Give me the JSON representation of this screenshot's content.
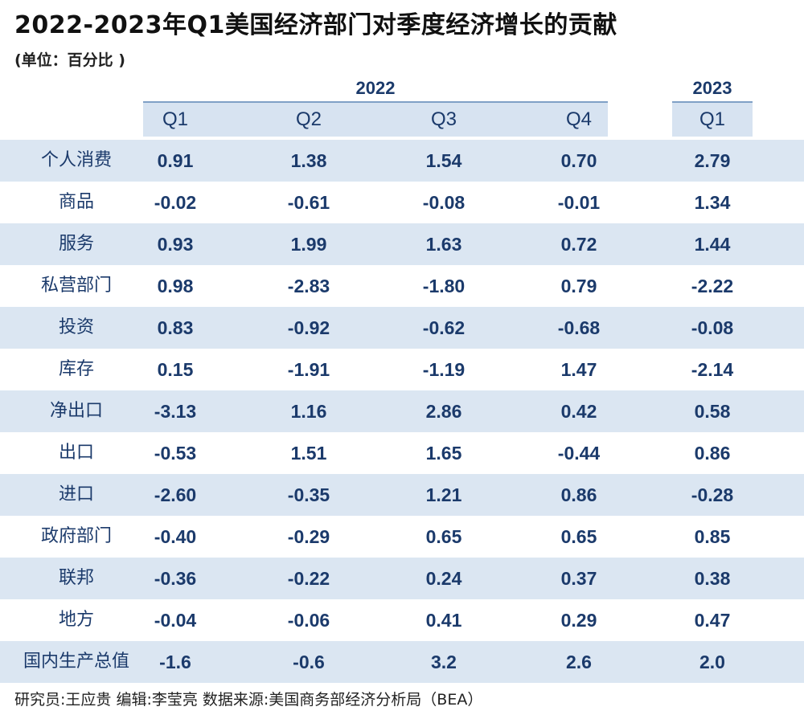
{
  "title": "2022-2023年Q1美国经济部门对季度经济增长的贡献",
  "unit": "(单位：百分比 )",
  "years": [
    "2022",
    "2023"
  ],
  "quarters": [
    "Q1",
    "Q2",
    "Q3",
    "Q4",
    "Q1"
  ],
  "footer": "研究员:王应贵   编辑:李莹亮   数据来源:美国商务部经济分析局（BEA）",
  "colors": {
    "header_bg": "#d7e3f1",
    "row_shade": "#dbe6f2",
    "text": "#1b3a6b",
    "rule": "#7fa0c6"
  },
  "chart_data": {
    "type": "table",
    "columns": [
      "2022 Q1",
      "2022 Q2",
      "2022 Q3",
      "2022 Q4",
      "2023 Q1"
    ],
    "rows": [
      {
        "label": "个人消费",
        "values": [
          "0.91",
          "1.38",
          "1.54",
          "0.70",
          "2.79"
        ]
      },
      {
        "label": "商品",
        "values": [
          "-0.02",
          "-0.61",
          "-0.08",
          "-0.01",
          "1.34"
        ]
      },
      {
        "label": "服务",
        "values": [
          "0.93",
          "1.99",
          "1.63",
          "0.72",
          "1.44"
        ]
      },
      {
        "label": "私营部门",
        "values": [
          "0.98",
          "-2.83",
          "-1.80",
          "0.79",
          "-2.22"
        ]
      },
      {
        "label": "投资",
        "values": [
          "0.83",
          "-0.92",
          "-0.62",
          "-0.68",
          "-0.08"
        ]
      },
      {
        "label": "库存",
        "values": [
          "0.15",
          "-1.91",
          "-1.19",
          "1.47",
          "-2.14"
        ]
      },
      {
        "label": "净出口",
        "values": [
          "-3.13",
          "1.16",
          "2.86",
          "0.42",
          "0.58"
        ]
      },
      {
        "label": "出口",
        "values": [
          "-0.53",
          "1.51",
          "1.65",
          "-0.44",
          "0.86"
        ]
      },
      {
        "label": "进口",
        "values": [
          "-2.60",
          "-0.35",
          "1.21",
          "0.86",
          "-0.28"
        ]
      },
      {
        "label": "政府部门",
        "values": [
          "-0.40",
          "-0.29",
          "0.65",
          "0.65",
          "0.85"
        ]
      },
      {
        "label": "联邦",
        "values": [
          "-0.36",
          "-0.22",
          "0.24",
          "0.37",
          "0.38"
        ]
      },
      {
        "label": "地方",
        "values": [
          "-0.04",
          "-0.06",
          "0.41",
          "0.29",
          "0.47"
        ]
      },
      {
        "label": "国内生产总值",
        "values": [
          "-1.6",
          "-0.6",
          "3.2",
          "2.6",
          "2.0"
        ]
      }
    ]
  }
}
